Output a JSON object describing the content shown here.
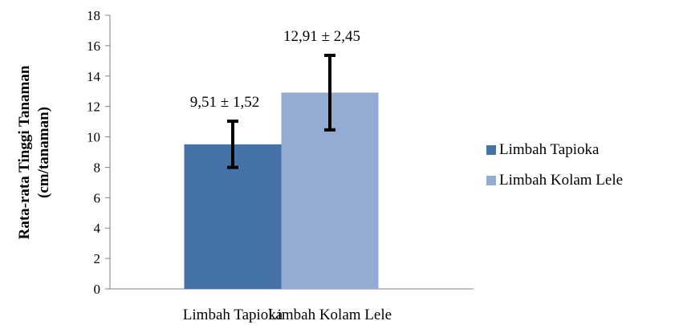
{
  "chart_data": {
    "type": "bar",
    "categories": [
      "Limbah Tapioka",
      "Limbah Kolam Lele"
    ],
    "series": [
      {
        "name": "Limbah Tapioka",
        "color": "#4572a7",
        "values": [
          9.51,
          null
        ],
        "errors": [
          1.52,
          null
        ],
        "labels": [
          "9,51 ± 1,52",
          null
        ]
      },
      {
        "name": "Limbah Kolam Lele",
        "color": "#94abd3",
        "values": [
          null,
          12.91
        ],
        "errors": [
          null,
          2.45
        ],
        "labels": [
          null,
          "12,91 ± 2,45"
        ]
      }
    ],
    "ylabel_line1": "Rata-rata Tinggi Tanaman",
    "ylabel_line2": "(cm/tanaman)",
    "ylim": [
      0,
      18
    ],
    "yticks": [
      "0",
      "2",
      "4",
      "6",
      "8",
      "10",
      "12",
      "14",
      "16",
      "18"
    ],
    "grid": false,
    "legend_position": "right"
  }
}
